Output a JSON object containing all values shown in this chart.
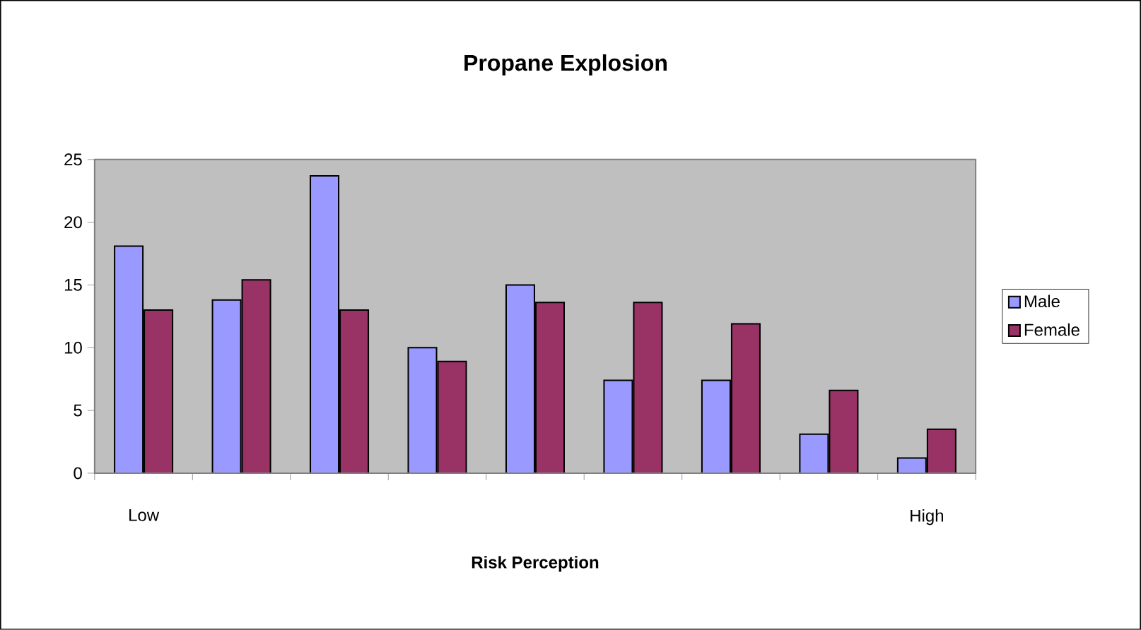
{
  "chart_data": {
    "type": "bar",
    "title": "Propane Explosion",
    "xlabel": "Risk Perception",
    "categories": [
      "Low",
      null,
      null,
      null,
      null,
      null,
      null,
      null,
      "High"
    ],
    "series": [
      {
        "name": "Male",
        "color": "#9999ff",
        "values": [
          18.1,
          13.8,
          23.7,
          10,
          15,
          7.4,
          7.4,
          3.1,
          1.2
        ]
      },
      {
        "name": "Female",
        "color": "#993366",
        "values": [
          13,
          15.4,
          13,
          8.9,
          13.6,
          13.6,
          11.9,
          6.6,
          3.5
        ]
      }
    ],
    "ylim": [
      0,
      25
    ],
    "yticks": [
      0,
      5,
      10,
      15,
      20,
      25
    ],
    "legend": "right"
  }
}
